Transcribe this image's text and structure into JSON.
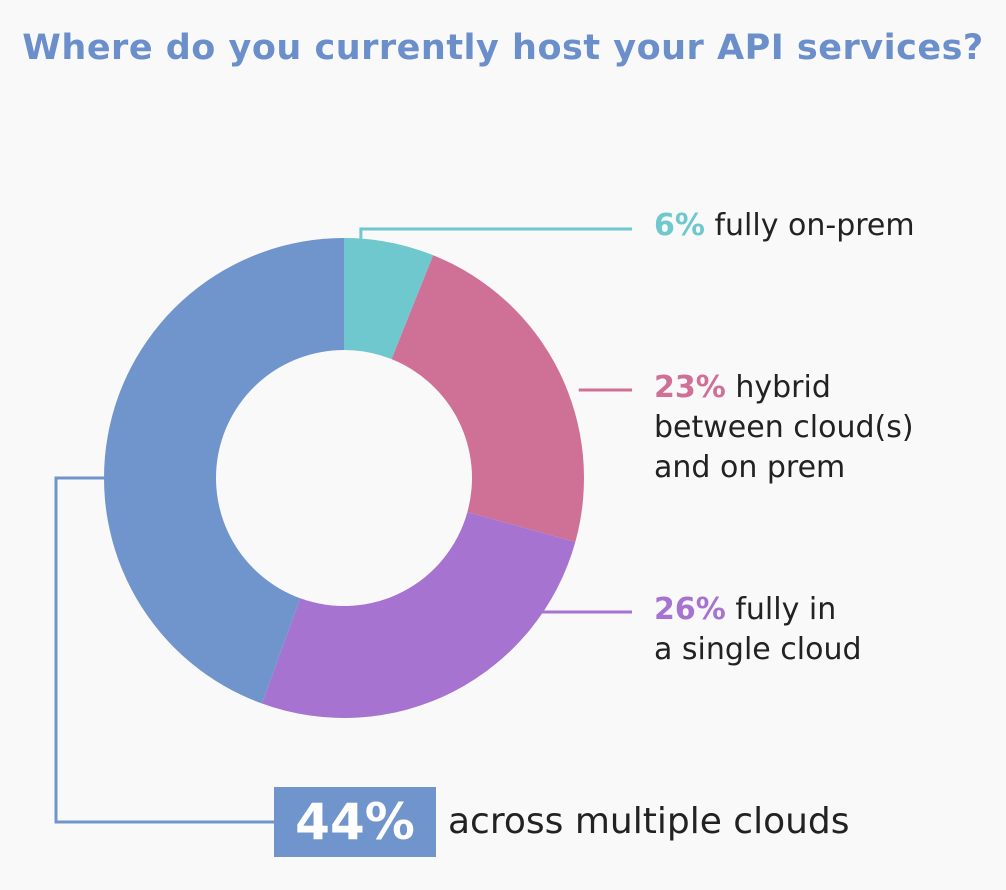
{
  "chart_data": {
    "type": "pie",
    "title": "Where do you currently host your API services?",
    "slices": [
      {
        "label": "fully on-prem",
        "percent_label": "6%",
        "value": 6,
        "color": "#6fc8ce"
      },
      {
        "label": "hybrid between cloud(s) and on prem",
        "percent_label": "23%",
        "value": 23,
        "color": "#cf7097"
      },
      {
        "label": "fully in a single cloud",
        "percent_label": "26%",
        "value": 26,
        "color": "#a673d0"
      },
      {
        "label": "across multiple clouds",
        "percent_label": "44%",
        "value": 44,
        "color": "#7095cd"
      }
    ]
  },
  "labels": {
    "on_prem": {
      "pct": "6%",
      "line1": " fully on-prem"
    },
    "hybrid": {
      "pct": "23%",
      "line1": " hybrid",
      "line2": "between cloud(s)",
      "line3": "and on prem"
    },
    "single": {
      "pct": "26%",
      "line1": " fully in",
      "line2": "a single cloud"
    },
    "multi": {
      "pct": "44%",
      "text": "across multiple clouds"
    }
  }
}
